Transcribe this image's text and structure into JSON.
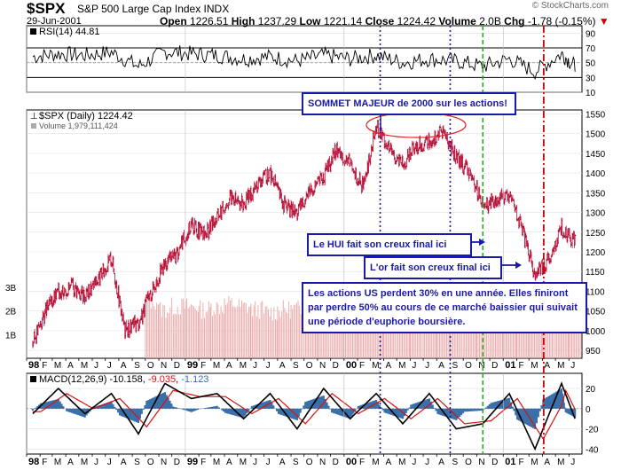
{
  "header": {
    "symbol": "$SPX",
    "name": "S&P 500 Large Cap Index INDX",
    "date": "29-Jun-2001",
    "open_label": "Open",
    "open": "1226.51",
    "high_label": "High",
    "high": "1237.29",
    "low_label": "Low",
    "low": "1221.14",
    "close_label": "Close",
    "close": "1224.42",
    "volume_label": "Volume",
    "volume": "2.0B",
    "chg_label": "Chg",
    "chg": "-1.78 (-0.15%)",
    "credit": "© StockCharts.com"
  },
  "annotations": {
    "top": "SOMMET MAJEUR de 2000 sur les actions!",
    "hui": "Le HUI fait son creux final ici",
    "gold": "L'or fait son creux final ici",
    "conclusion": "Les actions US perdent 30% en une année. Elles finiront par perdre 50% au cours de ce marché baissier qui suivait une période d'euphorie boursière."
  },
  "colors": {
    "price": "#c0143c",
    "volume": "#e8a6a6",
    "macd_hist": "#3a6fa8",
    "signal": "#d81010",
    "line_blue": "#1a1aa8",
    "line_green": "#1eb41e",
    "line_red": "#cc0000"
  },
  "chart_data": [
    {
      "type": "line",
      "panel": "RSI",
      "legend": "RSI(14) 44.81",
      "yticks": [
        10,
        30,
        50,
        70,
        90
      ],
      "ylim": [
        10,
        100
      ],
      "levels": [
        30,
        70
      ],
      "x": [
        "1998-01",
        "1998-03",
        "1998-05",
        "1998-07",
        "1998-09",
        "1998-11",
        "1999-01",
        "1999-03",
        "1999-05",
        "1999-07",
        "1999-09",
        "1999-11",
        "2000-01",
        "2000-03",
        "2000-05",
        "2000-07",
        "2000-09",
        "2000-11",
        "2001-01",
        "2001-03",
        "2001-05",
        "2001-06"
      ],
      "values": [
        58,
        62,
        60,
        64,
        45,
        65,
        62,
        60,
        55,
        58,
        52,
        60,
        55,
        60,
        50,
        55,
        52,
        45,
        55,
        38,
        62,
        45
      ]
    },
    {
      "type": "line",
      "panel": "price",
      "legend": "$SPX (Daily) 1224.42",
      "volume_legend": "Volume 1,979,111,424",
      "yticks": [
        950,
        1000,
        1050,
        1100,
        1150,
        1200,
        1250,
        1300,
        1350,
        1400,
        1450,
        1500,
        1550
      ],
      "ylim": [
        930,
        1560
      ],
      "volume_ticks": [
        "1B",
        "2B",
        "3B"
      ],
      "x": [
        "1998-01",
        "1998-02",
        "1998-03",
        "1998-04",
        "1998-05",
        "1998-06",
        "1998-07",
        "1998-08",
        "1998-09",
        "1998-10",
        "1998-11",
        "1998-12",
        "1999-01",
        "1999-02",
        "1999-03",
        "1999-04",
        "1999-05",
        "1999-06",
        "1999-07",
        "1999-08",
        "1999-09",
        "1999-10",
        "1999-11",
        "1999-12",
        "2000-01",
        "2000-02",
        "2000-03",
        "2000-04",
        "2000-05",
        "2000-06",
        "2000-07",
        "2000-08",
        "2000-09",
        "2000-10",
        "2000-11",
        "2000-12",
        "2001-01",
        "2001-02",
        "2001-03",
        "2001-04",
        "2001-05",
        "2001-06"
      ],
      "values": [
        970,
        1050,
        1100,
        1110,
        1090,
        1130,
        1185,
        1000,
        1020,
        1100,
        1170,
        1200,
        1270,
        1240,
        1290,
        1340,
        1320,
        1370,
        1400,
        1320,
        1300,
        1360,
        1390,
        1460,
        1420,
        1360,
        1520,
        1460,
        1420,
        1470,
        1480,
        1510,
        1440,
        1400,
        1320,
        1330,
        1350,
        1250,
        1140,
        1180,
        1260,
        1224
      ],
      "volume_b": [
        0.75,
        0.8,
        0.85,
        0.9,
        0.85,
        0.95,
        0.9,
        1.1,
        1.0,
        1.05,
        0.9,
        0.95,
        0.95,
        0.9,
        0.95,
        1.0,
        0.95,
        0.9,
        0.85,
        0.9,
        0.9,
        0.95,
        0.95,
        0.95,
        1.0,
        1.05,
        1.2,
        1.1,
        0.95,
        0.95,
        0.9,
        0.95,
        1.0,
        1.1,
        1.05,
        1.1,
        1.15,
        1.1,
        1.25,
        1.2,
        1.15,
        1.1
      ]
    },
    {
      "type": "line",
      "panel": "MACD",
      "legend_name": "MACD(12,26,9)",
      "legend_macd": "-10.158",
      "legend_signal": "-9.035",
      "legend_hist": "-1.123",
      "yticks": [
        -40,
        -20,
        0,
        20
      ],
      "ylim": [
        -45,
        35
      ],
      "x": [
        "1998-01",
        "1998-03",
        "1998-05",
        "1998-07",
        "1998-09",
        "1998-11",
        "1999-01",
        "1999-03",
        "1999-05",
        "1999-07",
        "1999-09",
        "1999-11",
        "2000-01",
        "2000-03",
        "2000-05",
        "2000-07",
        "2000-09",
        "2000-11",
        "2001-01",
        "2001-03",
        "2001-05",
        "2001-06"
      ],
      "macd": [
        -5,
        20,
        -5,
        15,
        -25,
        25,
        10,
        15,
        -10,
        15,
        -20,
        20,
        -10,
        15,
        -15,
        15,
        -20,
        -15,
        15,
        -40,
        25,
        -10
      ],
      "signal": [
        -3,
        15,
        0,
        10,
        -18,
        18,
        12,
        12,
        -5,
        10,
        -15,
        15,
        -5,
        10,
        -10,
        10,
        -15,
        -12,
        10,
        -30,
        18,
        -9
      ]
    }
  ],
  "axis": {
    "months": [
      "98",
      "F",
      "M",
      "A",
      "M",
      "J",
      "J",
      "A",
      "S",
      "O",
      "N",
      "D",
      "99",
      "F",
      "M",
      "A",
      "M",
      "J",
      "J",
      "A",
      "S",
      "O",
      "N",
      "D",
      "00",
      "F",
      "M",
      "A",
      "M",
      "J",
      "J",
      "A",
      "S",
      "O",
      "N",
      "D",
      "01",
      "F",
      "M",
      "A",
      "M",
      "J"
    ]
  }
}
